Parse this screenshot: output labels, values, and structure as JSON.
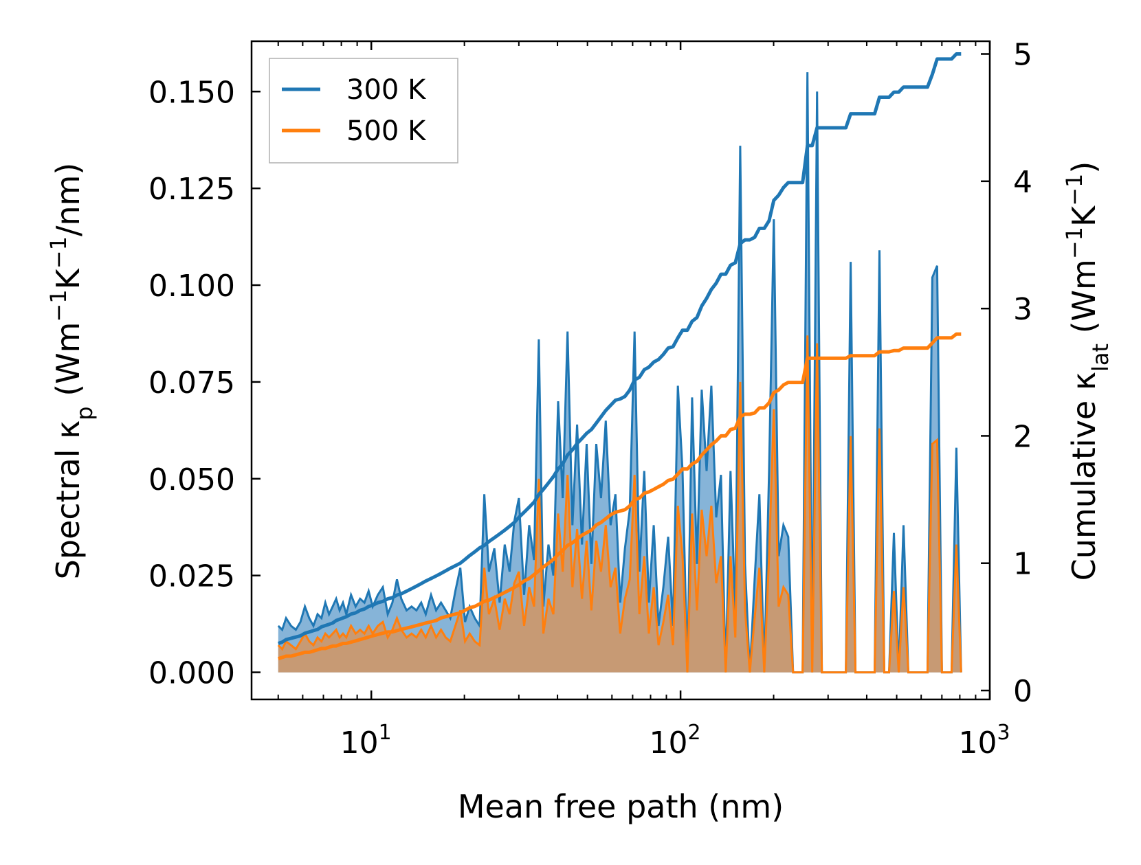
{
  "chart_data": {
    "type": "line",
    "xlabel": "Mean free path (nm)",
    "ylabel_left": {
      "base": "Spectral κ",
      "sub": "p",
      "units_open": " (Wm",
      "exp1": "−1",
      "mid": "K",
      "exp2": "−1",
      "tail": "/nm)"
    },
    "ylabel_right": {
      "base": "Cumulative κ",
      "sub": "lat",
      "units_open": " (Wm",
      "exp1": "−1",
      "mid": "K",
      "exp2": "−1",
      "tail": ")"
    },
    "x_scale": "log",
    "xlim": [
      4.1,
      1000
    ],
    "x_ticks": [
      {
        "value": 10,
        "base": "10",
        "exp": "1"
      },
      {
        "value": 100,
        "base": "10",
        "exp": "2"
      },
      {
        "value": 1000,
        "base": "10",
        "exp": "3"
      }
    ],
    "ylim_left": [
      -0.007,
      0.163
    ],
    "yticks_left": [
      "0.000",
      "0.025",
      "0.050",
      "0.075",
      "0.100",
      "0.125",
      "0.150"
    ],
    "ylim_right": [
      -0.07,
      5.1
    ],
    "yticks_right": [
      "0",
      "1",
      "2",
      "3",
      "4",
      "5"
    ],
    "legend": {
      "position": "top-left",
      "entries": [
        "300 K",
        "500 K"
      ]
    },
    "colors": {
      "s300": "#1f77b4",
      "s500": "#ff7f0e",
      "fill300": "#7fb0d6",
      "fill500": "#c79a74"
    },
    "x": [
      5.0,
      5.15,
      5.3,
      5.5,
      5.7,
      5.9,
      6.1,
      6.3,
      6.5,
      6.7,
      6.9,
      7.1,
      7.3,
      7.5,
      7.7,
      7.9,
      8.1,
      8.3,
      8.6,
      8.9,
      9.2,
      9.5,
      9.8,
      10.1,
      10.5,
      10.9,
      11.3,
      11.7,
      12.1,
      12.5,
      13.0,
      13.5,
      14.0,
      14.5,
      15.0,
      15.6,
      16.2,
      16.8,
      17.4,
      18.0,
      18.7,
      19.4,
      20.1,
      20.8,
      21.6,
      22.4,
      23.2,
      24.0,
      25.0,
      26.0,
      27.0,
      28.0,
      29.0,
      30.0,
      31.2,
      32.4,
      33.6,
      34.8,
      36.0,
      37.4,
      38.8,
      40.2,
      41.6,
      43.1,
      44.7,
      46.3,
      48.0,
      49.7,
      51.5,
      53.4,
      55.3,
      57.3,
      59.4,
      61.6,
      63.8,
      66.1,
      68.5,
      71.0,
      73.6,
      76.3,
      79.0,
      81.9,
      84.9,
      88.0,
      91.2,
      94.5,
      98.0,
      101.5,
      105.2,
      109.0,
      113.0,
      117.1,
      121.4,
      125.8,
      130.4,
      135.1,
      140.0,
      145.1,
      150.4,
      155.9,
      161.6,
      167.5,
      173.6,
      179.9,
      186.5,
      193.3,
      200.3,
      207.6,
      215.2,
      223.0,
      231.1,
      239.5,
      248.2,
      257.2,
      266.6,
      276.3,
      286.4,
      296.8,
      307.6,
      318.8,
      330.4,
      342.4,
      354.9,
      367.8,
      381.2,
      395.1,
      409.5,
      424.4,
      439.9,
      455.9,
      472.5,
      489.7,
      507.5,
      526.0,
      545.2,
      565.0,
      585.6,
      606.9,
      629.0,
      651.9,
      675.6,
      700.2,
      725.7,
      752.2,
      779.6,
      808.0,
      837.4
    ],
    "series": [
      {
        "name": "300 K",
        "spectral": [
          0.012,
          0.011,
          0.014,
          0.012,
          0.011,
          0.013,
          0.017,
          0.014,
          0.012,
          0.015,
          0.014,
          0.018,
          0.015,
          0.017,
          0.019,
          0.016,
          0.018,
          0.015,
          0.02,
          0.017,
          0.019,
          0.018,
          0.021,
          0.017,
          0.02,
          0.022,
          0.015,
          0.018,
          0.024,
          0.019,
          0.016,
          0.017,
          0.016,
          0.018,
          0.015,
          0.02,
          0.016,
          0.018,
          0.016,
          0.014,
          0.021,
          0.027,
          0.013,
          0.017,
          0.014,
          0.012,
          0.046,
          0.026,
          0.032,
          0.018,
          0.033,
          0.026,
          0.039,
          0.045,
          0.02,
          0.038,
          0.029,
          0.086,
          0.017,
          0.033,
          0.025,
          0.07,
          0.045,
          0.088,
          0.038,
          0.064,
          0.033,
          0.059,
          0.028,
          0.059,
          0.045,
          0.065,
          0.038,
          0.046,
          0.018,
          0.032,
          0.042,
          0.088,
          0.026,
          0.052,
          0.018,
          0.038,
          0.012,
          0.022,
          0.035,
          0.012,
          0.074,
          0.052,
          0.0,
          0.071,
          0.028,
          0.073,
          0.052,
          0.074,
          0.04,
          0.051,
          0.0,
          0.052,
          0.015,
          0.136,
          0.028,
          0.0,
          0.024,
          0.046,
          0.0,
          0.052,
          0.117,
          0.03,
          0.038,
          0.035,
          0.0,
          0.0,
          0.0,
          0.155,
          0.0,
          0.15,
          0.0,
          0.0,
          0.0,
          0.0,
          0.0,
          0.0,
          0.106,
          0.0,
          0.0,
          0.0,
          0.0,
          0.0,
          0.109,
          0.0,
          0.0,
          0.036,
          0.0,
          0.038,
          0.0,
          0.0,
          0.0,
          0.0,
          0.0,
          0.102,
          0.105,
          0.0,
          0.0,
          0.0,
          0.058,
          0.0
        ],
        "cumulative": [
          0.37,
          0.38,
          0.4,
          0.41,
          0.42,
          0.43,
          0.45,
          0.46,
          0.47,
          0.48,
          0.5,
          0.51,
          0.52,
          0.53,
          0.55,
          0.56,
          0.57,
          0.58,
          0.6,
          0.61,
          0.63,
          0.64,
          0.66,
          0.67,
          0.69,
          0.7,
          0.72,
          0.73,
          0.75,
          0.76,
          0.78,
          0.8,
          0.82,
          0.84,
          0.86,
          0.88,
          0.9,
          0.92,
          0.94,
          0.96,
          0.98,
          1.0,
          1.03,
          1.06,
          1.09,
          1.12,
          1.14,
          1.17,
          1.2,
          1.23,
          1.26,
          1.29,
          1.32,
          1.36,
          1.4,
          1.44,
          1.48,
          1.54,
          1.58,
          1.63,
          1.68,
          1.74,
          1.78,
          1.85,
          1.89,
          1.94,
          1.98,
          2.02,
          2.05,
          2.1,
          2.15,
          2.2,
          2.24,
          2.28,
          2.29,
          2.31,
          2.36,
          2.44,
          2.46,
          2.52,
          2.54,
          2.58,
          2.6,
          2.64,
          2.69,
          2.7,
          2.77,
          2.83,
          2.83,
          2.9,
          2.93,
          3.02,
          3.08,
          3.15,
          3.2,
          3.27,
          3.27,
          3.34,
          3.36,
          3.51,
          3.54,
          3.54,
          3.56,
          3.63,
          3.63,
          3.69,
          3.85,
          3.89,
          3.95,
          3.99,
          3.99,
          3.99,
          3.99,
          4.28,
          4.28,
          4.42,
          4.42,
          4.42,
          4.42,
          4.42,
          4.42,
          4.42,
          4.53,
          4.53,
          4.53,
          4.53,
          4.53,
          4.53,
          4.66,
          4.66,
          4.66,
          4.7,
          4.7,
          4.74,
          4.74,
          4.74,
          4.74,
          4.74,
          4.74,
          4.84,
          4.96,
          4.96,
          4.96,
          4.96,
          5.0,
          5.0
        ]
      },
      {
        "name": "500 K",
        "spectral": [
          0.007,
          0.006,
          0.008,
          0.007,
          0.006,
          0.008,
          0.01,
          0.008,
          0.007,
          0.009,
          0.008,
          0.01,
          0.009,
          0.01,
          0.011,
          0.009,
          0.01,
          0.009,
          0.012,
          0.01,
          0.011,
          0.01,
          0.012,
          0.01,
          0.012,
          0.013,
          0.009,
          0.011,
          0.014,
          0.011,
          0.009,
          0.01,
          0.009,
          0.011,
          0.009,
          0.012,
          0.009,
          0.011,
          0.009,
          0.008,
          0.012,
          0.016,
          0.008,
          0.01,
          0.008,
          0.007,
          0.027,
          0.015,
          0.019,
          0.011,
          0.019,
          0.015,
          0.023,
          0.026,
          0.012,
          0.022,
          0.017,
          0.05,
          0.01,
          0.019,
          0.015,
          0.041,
          0.026,
          0.051,
          0.022,
          0.037,
          0.019,
          0.034,
          0.016,
          0.034,
          0.026,
          0.038,
          0.022,
          0.027,
          0.01,
          0.019,
          0.024,
          0.051,
          0.015,
          0.03,
          0.01,
          0.022,
          0.007,
          0.013,
          0.02,
          0.007,
          0.043,
          0.03,
          0.0,
          0.041,
          0.016,
          0.042,
          0.03,
          0.043,
          0.023,
          0.03,
          0.0,
          0.03,
          0.009,
          0.075,
          0.016,
          0.0,
          0.014,
          0.027,
          0.0,
          0.03,
          0.068,
          0.017,
          0.022,
          0.02,
          0.0,
          0.0,
          0.0,
          0.087,
          0.0,
          0.085,
          0.0,
          0.0,
          0.0,
          0.0,
          0.0,
          0.0,
          0.061,
          0.0,
          0.0,
          0.0,
          0.0,
          0.0,
          0.063,
          0.0,
          0.0,
          0.021,
          0.0,
          0.022,
          0.0,
          0.0,
          0.0,
          0.0,
          0.0,
          0.059,
          0.06,
          0.0,
          0.0,
          0.0,
          0.033,
          0.0
        ],
        "cumulative": [
          0.25,
          0.26,
          0.27,
          0.27,
          0.28,
          0.29,
          0.3,
          0.3,
          0.31,
          0.32,
          0.33,
          0.33,
          0.34,
          0.35,
          0.35,
          0.36,
          0.37,
          0.37,
          0.38,
          0.39,
          0.4,
          0.41,
          0.42,
          0.43,
          0.44,
          0.45,
          0.46,
          0.46,
          0.47,
          0.48,
          0.49,
          0.5,
          0.51,
          0.52,
          0.53,
          0.54,
          0.55,
          0.57,
          0.58,
          0.59,
          0.6,
          0.61,
          0.63,
          0.65,
          0.66,
          0.68,
          0.7,
          0.71,
          0.73,
          0.75,
          0.77,
          0.79,
          0.81,
          0.83,
          0.86,
          0.88,
          0.91,
          0.94,
          0.97,
          1.0,
          1.03,
          1.07,
          1.1,
          1.14,
          1.16,
          1.19,
          1.22,
          1.24,
          1.26,
          1.3,
          1.32,
          1.35,
          1.38,
          1.4,
          1.41,
          1.42,
          1.45,
          1.5,
          1.51,
          1.55,
          1.56,
          1.58,
          1.6,
          1.62,
          1.65,
          1.66,
          1.7,
          1.74,
          1.74,
          1.78,
          1.8,
          1.85,
          1.89,
          1.93,
          1.96,
          2.0,
          2.0,
          2.05,
          2.06,
          2.15,
          2.17,
          2.17,
          2.18,
          2.22,
          2.22,
          2.26,
          2.34,
          2.36,
          2.4,
          2.42,
          2.42,
          2.42,
          2.42,
          2.61,
          2.61,
          2.61,
          2.61,
          2.61,
          2.61,
          2.61,
          2.61,
          2.61,
          2.63,
          2.63,
          2.63,
          2.63,
          2.63,
          2.63,
          2.66,
          2.66,
          2.66,
          2.67,
          2.67,
          2.69,
          2.69,
          2.69,
          2.69,
          2.69,
          2.69,
          2.73,
          2.77,
          2.77,
          2.77,
          2.77,
          2.8,
          2.8
        ]
      }
    ]
  }
}
